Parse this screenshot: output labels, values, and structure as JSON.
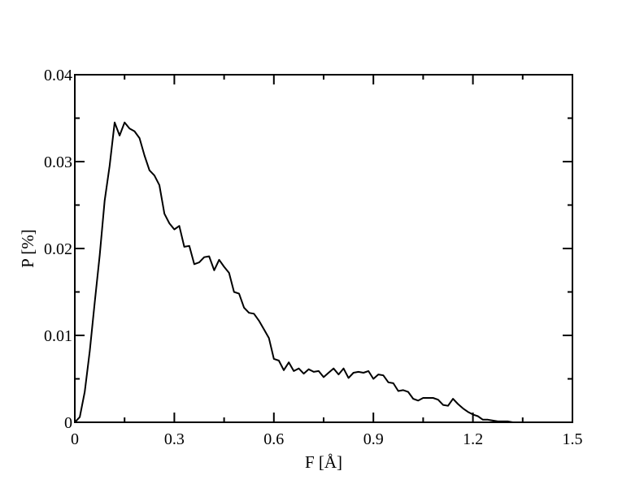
{
  "chart_data": {
    "type": "line",
    "title": "",
    "xlabel": "F [Å]",
    "ylabel": "P [%]",
    "xlim": [
      0,
      1.5
    ],
    "ylim": [
      0,
      0.04
    ],
    "x_ticks": [
      0,
      0.3,
      0.6,
      0.9,
      1.2,
      1.5
    ],
    "x_tick_labels": [
      "0",
      "0.3",
      "0.6",
      "0.9",
      "1.2",
      "1.5"
    ],
    "y_ticks": [
      0,
      0.01,
      0.02,
      0.03,
      0.04
    ],
    "y_tick_labels": [
      "0",
      "0.01",
      "0.02",
      "0.03",
      "0.04"
    ],
    "grid": false,
    "legend": "none",
    "line_color": "#000000",
    "series": [
      {
        "x": [
          0,
          0.015,
          0.03,
          0.045,
          0.06,
          0.075,
          0.09,
          0.105,
          0.12,
          0.135,
          0.15,
          0.165,
          0.18,
          0.195,
          0.21,
          0.225,
          0.24,
          0.255,
          0.27,
          0.285,
          0.3,
          0.315,
          0.33,
          0.345,
          0.36,
          0.375,
          0.39,
          0.405,
          0.42,
          0.435,
          0.45,
          0.465,
          0.48,
          0.495,
          0.51,
          0.525,
          0.54,
          0.555,
          0.57,
          0.585,
          0.6,
          0.615,
          0.63,
          0.645,
          0.66,
          0.675,
          0.69,
          0.705,
          0.72,
          0.735,
          0.75,
          0.765,
          0.78,
          0.795,
          0.81,
          0.825,
          0.84,
          0.855,
          0.87,
          0.885,
          0.9,
          0.915,
          0.93,
          0.945,
          0.96,
          0.975,
          0.99,
          1.005,
          1.02,
          1.035,
          1.05,
          1.065,
          1.08,
          1.095,
          1.11,
          1.125,
          1.14,
          1.155,
          1.17,
          1.185,
          1.2,
          1.215,
          1.23,
          1.245,
          1.26,
          1.275,
          1.29,
          1.305,
          1.32,
          1.335,
          1.35
        ],
        "y": [
          0,
          0.0006,
          0.0035,
          0.0082,
          0.0138,
          0.0192,
          0.0255,
          0.0295,
          0.0345,
          0.033,
          0.0345,
          0.0338,
          0.0335,
          0.0327,
          0.0307,
          0.029,
          0.0284,
          0.0273,
          0.024,
          0.0229,
          0.0222,
          0.0226,
          0.0202,
          0.0203,
          0.0182,
          0.0184,
          0.019,
          0.0191,
          0.0175,
          0.0187,
          0.0179,
          0.0172,
          0.015,
          0.0148,
          0.0132,
          0.0126,
          0.0125,
          0.0117,
          0.0107,
          0.0097,
          0.0073,
          0.0071,
          0.006,
          0.0069,
          0.0059,
          0.0062,
          0.0056,
          0.0061,
          0.0058,
          0.0059,
          0.0052,
          0.0057,
          0.0062,
          0.0055,
          0.0062,
          0.0051,
          0.0057,
          0.0058,
          0.0057,
          0.0059,
          0.005,
          0.0055,
          0.0054,
          0.0046,
          0.0045,
          0.0036,
          0.0037,
          0.0035,
          0.0027,
          0.0025,
          0.0028,
          0.0028,
          0.0028,
          0.0026,
          0.002,
          0.0019,
          0.0027,
          0.0021,
          0.0016,
          0.0012,
          0.0009,
          0.0007,
          0.0003,
          0.0003,
          0.0002,
          0.0001,
          0.0001,
          0.0001,
          0,
          0,
          0
        ]
      }
    ]
  }
}
